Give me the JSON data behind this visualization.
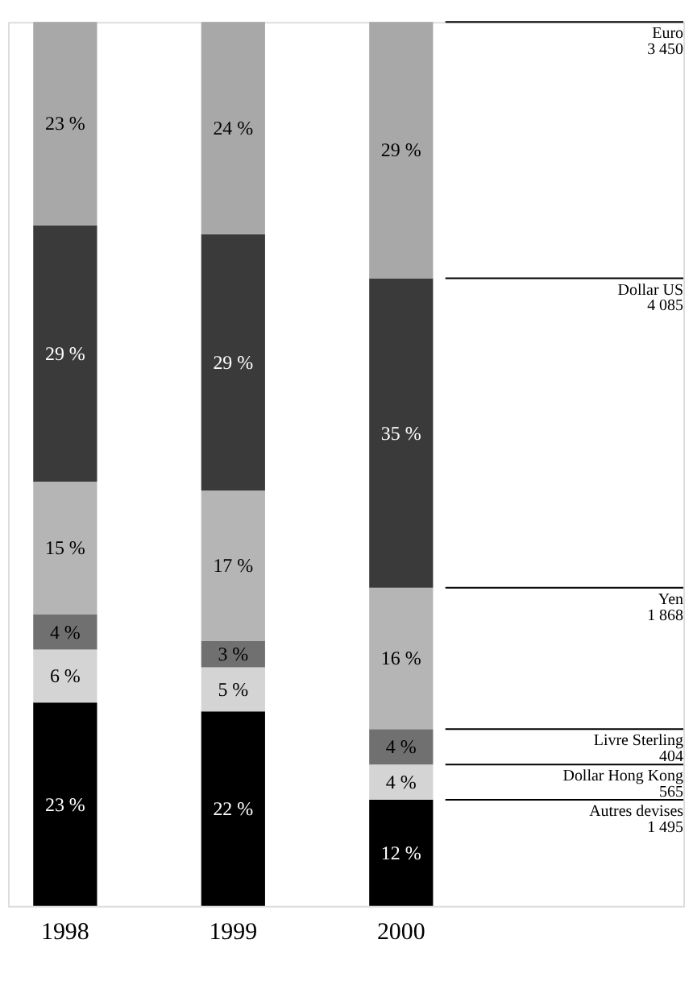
{
  "chart_data": {
    "type": "bar",
    "stacked": true,
    "categories": [
      "1998",
      "1999",
      "2000"
    ],
    "series": [
      {
        "name": "Autres devises",
        "color": "#000000",
        "values": [
          23,
          22,
          12
        ],
        "value_labels": [
          "23 %",
          "22 %",
          "12 %"
        ]
      },
      {
        "name": "Dollar Hong Kong",
        "color": "#d4d4d4",
        "values": [
          6,
          5,
          4
        ],
        "value_labels": [
          "6 %",
          "5 %",
          "4 %"
        ]
      },
      {
        "name": "Livre Sterling",
        "color": "#707070",
        "values": [
          4,
          3,
          4
        ],
        "value_labels": [
          "4 %",
          "3 %",
          "4 %"
        ]
      },
      {
        "name": "Yen",
        "color": "#b5b5b5",
        "values": [
          15,
          17,
          16
        ],
        "value_labels": [
          "15 %",
          "17 %",
          "16 %"
        ]
      },
      {
        "name": "Dollar US",
        "color": "#3a3a3a",
        "values": [
          29,
          29,
          35
        ],
        "value_labels": [
          "29 %",
          "29 %",
          "35 %"
        ]
      },
      {
        "name": "Euro",
        "color": "#a8a8a8",
        "values": [
          23,
          24,
          29
        ],
        "value_labels": [
          "23 %",
          "24 %",
          "29 %"
        ]
      }
    ],
    "annotations": [
      "1 495",
      "565",
      "404",
      "1 868",
      "4 085",
      "3 450"
    ]
  }
}
